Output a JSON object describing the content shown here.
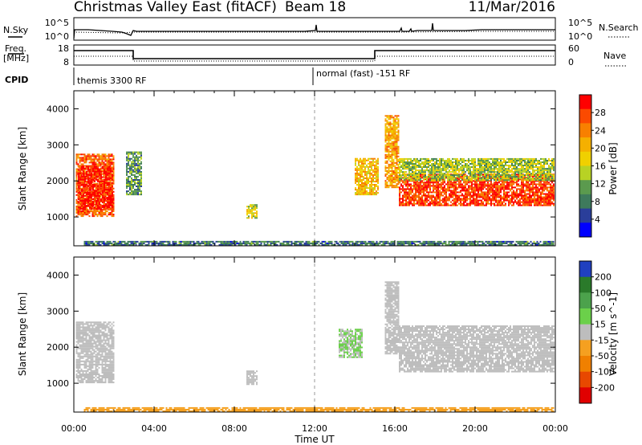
{
  "header": {
    "title": "Christmas Valley East (fitACF)",
    "beam": "Beam 18",
    "date": "11/Mar/2016"
  },
  "strip_labels": {
    "nsky": "N.Sky",
    "nsearch": "N.Search",
    "freq_l1": "Freq.",
    "freq_l2": "[MHz]",
    "nave": "Nave",
    "cpid": "CPID"
  },
  "strip_ticks": {
    "noise_left_top": "10^5",
    "noise_left_bottom": "10^0",
    "noise_right_top": "10^5",
    "noise_right_bottom": "10^0",
    "freq_left_top": "18",
    "freq_left_bottom": "8",
    "nave_right_top": "60",
    "nave_right_bottom": "0"
  },
  "cpid": {
    "first": "themis 3300 RF",
    "second": "normal (fast) -151 RF"
  },
  "x_axis": {
    "label": "Time UT",
    "ticks": [
      "00:00",
      "04:00",
      "08:00",
      "12:00",
      "16:00",
      "20:00",
      "00:00"
    ]
  },
  "colors": {
    "power": [
      "#0000ff",
      "#2a3e9a",
      "#3e7a5c",
      "#5b9a4e",
      "#b8d224",
      "#f0d000",
      "#f5b000",
      "#f88000",
      "#fb4a00",
      "#ff0000"
    ],
    "velocity": [
      "#2040c0",
      "#2a7a2a",
      "#4ca24c",
      "#6bd04a",
      "#bdbdbd",
      "#f5a020",
      "#f08000",
      "#e84800",
      "#e00000"
    ]
  },
  "chart_data": [
    {
      "type": "heatmap",
      "name": "power",
      "ylabel": "Slant Range [km]",
      "xlabel": "",
      "xlim": [
        0,
        24
      ],
      "ylim": [
        200,
        4500
      ],
      "yticks": [
        "1000",
        "2000",
        "3000",
        "4000"
      ],
      "colorbar_label": "Power [dB]",
      "colorbar_ticks": [
        "4",
        "8",
        "12",
        "16",
        "20",
        "24",
        "28"
      ],
      "colorbar_range": [
        0,
        32
      ],
      "regions": [
        {
          "t": [
            0.1,
            2.0
          ],
          "r": [
            1000,
            2750
          ],
          "v": 26
        },
        {
          "t": [
            0.2,
            1.9
          ],
          "r": [
            1200,
            2400
          ],
          "v": 30
        },
        {
          "t": [
            2.6,
            3.4
          ],
          "r": [
            1600,
            2800
          ],
          "v": 10
        },
        {
          "t": [
            8.6,
            9.1
          ],
          "r": [
            950,
            1350
          ],
          "v": 16
        },
        {
          "t": [
            14.0,
            15.2
          ],
          "r": [
            1600,
            2600
          ],
          "v": 20
        },
        {
          "t": [
            15.5,
            16.2
          ],
          "r": [
            1800,
            3800
          ],
          "v": 22
        },
        {
          "t": [
            16.2,
            23.9
          ],
          "r": [
            1300,
            2200
          ],
          "v": 28
        },
        {
          "t": [
            16.2,
            23.9
          ],
          "r": [
            2000,
            2600
          ],
          "v": 14
        },
        {
          "t": [
            0.5,
            23.9
          ],
          "r": [
            200,
            320
          ],
          "v": 8
        }
      ]
    },
    {
      "type": "heatmap",
      "name": "velocity",
      "ylabel": "Slant Range [km]",
      "xlabel": "Time UT",
      "xlim": [
        0,
        24
      ],
      "ylim": [
        200,
        4500
      ],
      "yticks": [
        "1000",
        "2000",
        "3000",
        "4000"
      ],
      "colorbar_label": "Velocity [m s^-1]",
      "colorbar_ticks": [
        "200",
        "100",
        "50",
        "15",
        "-15",
        "-50",
        "-100",
        "-200"
      ],
      "colorbar_range": [
        -250,
        250
      ],
      "regions": [
        {
          "t": [
            0.1,
            2.0
          ],
          "r": [
            1000,
            2700
          ],
          "v": 0
        },
        {
          "t": [
            8.6,
            9.1
          ],
          "r": [
            950,
            1350
          ],
          "v": 0
        },
        {
          "t": [
            13.2,
            14.4
          ],
          "r": [
            1700,
            2500
          ],
          "v": 30
        },
        {
          "t": [
            15.5,
            16.2
          ],
          "r": [
            1800,
            3800
          ],
          "v": 0
        },
        {
          "t": [
            16.2,
            23.9
          ],
          "r": [
            1300,
            2600
          ],
          "v": 0
        },
        {
          "t": [
            0.5,
            23.9
          ],
          "r": [
            200,
            320
          ],
          "v": -60
        }
      ]
    }
  ]
}
